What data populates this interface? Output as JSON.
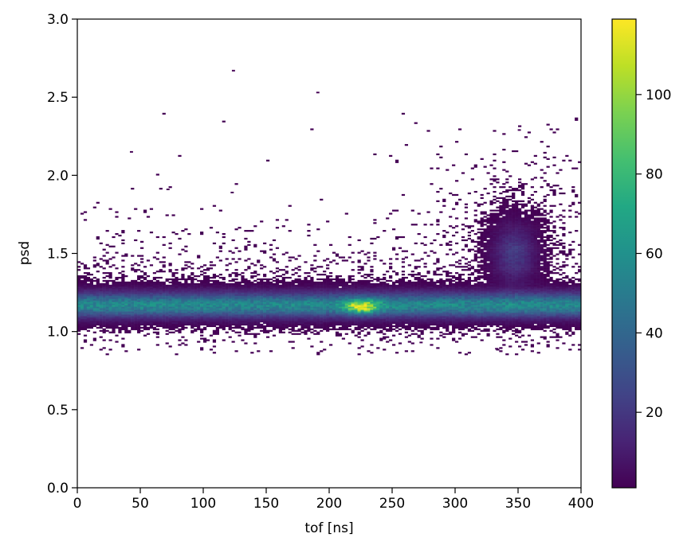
{
  "chart_data": {
    "type": "heatmap",
    "title": "",
    "xlabel": "tof [ns]",
    "ylabel": "psd",
    "xlim": [
      0,
      400
    ],
    "ylim": [
      0.0,
      3.0
    ],
    "x_ticks": [
      0,
      50,
      100,
      150,
      200,
      250,
      300,
      350,
      400
    ],
    "x_tick_labels": [
      "0",
      "50",
      "100",
      "150",
      "200",
      "250",
      "300",
      "350",
      "400"
    ],
    "y_ticks": [
      0.0,
      0.5,
      1.0,
      1.5,
      2.0,
      2.5,
      3.0
    ],
    "y_tick_labels": [
      "0.0",
      "0.5",
      "1.0",
      "1.5",
      "2.0",
      "2.5",
      "3.0"
    ],
    "grid": false,
    "colormap": "viridis",
    "colorbar": {
      "vmin": 1,
      "vmax": 119,
      "ticks": [
        20,
        40,
        60,
        80,
        100
      ],
      "tick_labels": [
        "20",
        "40",
        "60",
        "80",
        "100"
      ]
    },
    "bins": {
      "x_count": 160,
      "y_count": 300,
      "x_range": [
        0,
        400
      ],
      "y_range": [
        0.0,
        3.0
      ]
    },
    "empty_bins_hidden": true,
    "features": [
      {
        "name": "gamma band",
        "tof_range": [
          0,
          400
        ],
        "psd_center": 1.17,
        "psd_range": [
          1.04,
          1.34
        ],
        "typical_counts": 55,
        "peak_counts": 119,
        "peak_tof": 226,
        "peak_psd": 1.16
      },
      {
        "name": "neutron blob",
        "tof_center": 347,
        "psd_center": 1.5,
        "tof_range": [
          320,
          370
        ],
        "psd_range": [
          1.3,
          1.85
        ],
        "typical_counts": 20
      }
    ],
    "isolated_points": [
      {
        "x": 124,
        "y": 2.67
      },
      {
        "x": 191,
        "y": 2.53
      },
      {
        "x": 43,
        "y": 2.15
      },
      {
        "x": 351,
        "y": 2.29
      },
      {
        "x": 72,
        "y": 1.91
      },
      {
        "x": 123,
        "y": 1.89
      },
      {
        "x": 333,
        "y": 0.89
      },
      {
        "x": 273,
        "y": 0.93
      }
    ]
  }
}
